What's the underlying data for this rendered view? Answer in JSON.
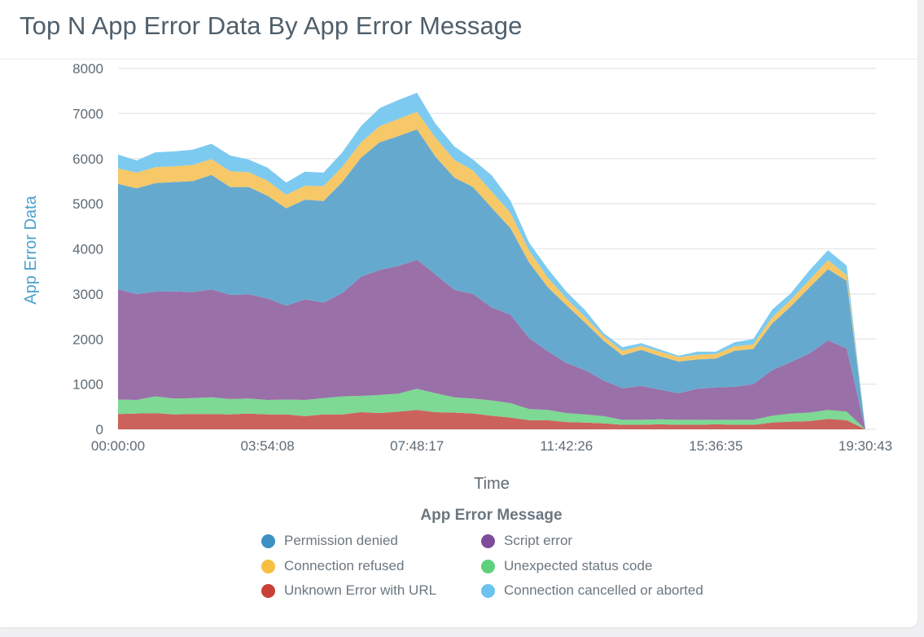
{
  "card": {
    "title": "Top N App Error Data By App Error Message"
  },
  "legend": {
    "title": "App Error Message",
    "items": [
      {
        "label": "Permission denied",
        "color": "#3d8fc4",
        "icon": "circle-marker"
      },
      {
        "label": "Script error",
        "color": "#7d4c9a",
        "icon": "circle-marker"
      },
      {
        "label": "Connection refused",
        "color": "#f5bf42",
        "icon": "circle-marker"
      },
      {
        "label": "Unexpected status code",
        "color": "#5fd07c",
        "icon": "circle-marker"
      },
      {
        "label": "Unknown Error with URL",
        "color": "#c94038",
        "icon": "circle-marker"
      },
      {
        "label": "Connection cancelled or aborted",
        "color": "#6cc3ef",
        "icon": "circle-marker"
      }
    ]
  },
  "axes": {
    "y_label": "App Error Data",
    "x_label": "Time",
    "y_ticks": [
      "0",
      "1000",
      "2000",
      "3000",
      "4000",
      "5000",
      "6000",
      "7000",
      "8000"
    ],
    "x_ticks": [
      "00:00:00",
      "03:54:08",
      "07:48:17",
      "11:42:26",
      "15:36:35",
      "19:30:43"
    ]
  },
  "chart_data": {
    "type": "area",
    "stacked": true,
    "title": "Top N App Error Data By App Error Message",
    "xlabel": "Time",
    "ylabel": "App Error Data",
    "ylim": [
      0,
      8000
    ],
    "grid": true,
    "legend_position": "bottom",
    "legend_title": "App Error Message",
    "x_tick_labels": [
      "00:00:00",
      "03:54:08",
      "07:48:17",
      "11:42:26",
      "15:36:35",
      "19:30:43"
    ],
    "point_count": 41,
    "stack_order_bottom_to_top": [
      "Unknown Error with URL",
      "Unexpected status code",
      "Script error",
      "Permission denied",
      "Connection refused",
      "Connection cancelled or aborted"
    ],
    "series": [
      {
        "name": "Unknown Error with URL",
        "color": "#cc625c",
        "values": [
          340,
          350,
          360,
          330,
          340,
          340,
          330,
          350,
          330,
          330,
          290,
          330,
          330,
          380,
          360,
          390,
          430,
          380,
          370,
          350,
          300,
          260,
          200,
          200,
          160,
          150,
          130,
          100,
          100,
          110,
          100,
          100,
          110,
          100,
          100,
          150,
          170,
          180,
          230,
          200,
          0
        ]
      },
      {
        "name": "Unexpected status code",
        "color": "#7dd994",
        "values": [
          320,
          300,
          370,
          350,
          350,
          370,
          340,
          330,
          320,
          330,
          360,
          360,
          400,
          360,
          400,
          400,
          470,
          420,
          340,
          330,
          340,
          320,
          250,
          230,
          200,
          180,
          160,
          110,
          110,
          110,
          110,
          110,
          100,
          110,
          110,
          150,
          180,
          190,
          200,
          190,
          0
        ]
      },
      {
        "name": "Script error",
        "color": "#9a70a8",
        "values": [
          2440,
          2350,
          2320,
          2380,
          2350,
          2390,
          2310,
          2310,
          2250,
          2080,
          2230,
          2120,
          2290,
          2640,
          2770,
          2830,
          2860,
          2630,
          2380,
          2320,
          2060,
          1960,
          1570,
          1300,
          1110,
          980,
          790,
          700,
          750,
          660,
          590,
          690,
          720,
          730,
          790,
          1010,
          1140,
          1310,
          1540,
          1400,
          0
        ]
      },
      {
        "name": "Permission denied",
        "color": "#66a9cf",
        "values": [
          2340,
          2340,
          2410,
          2420,
          2460,
          2540,
          2390,
          2380,
          2280,
          2160,
          2210,
          2250,
          2460,
          2640,
          2830,
          2880,
          2890,
          2610,
          2490,
          2370,
          2210,
          1920,
          1680,
          1420,
          1280,
          1050,
          880,
          730,
          800,
          740,
          700,
          650,
          640,
          800,
          780,
          1030,
          1230,
          1460,
          1580,
          1500,
          0
        ]
      },
      {
        "name": "Connection refused",
        "color": "#f6c868",
        "values": [
          340,
          350,
          350,
          350,
          360,
          350,
          350,
          330,
          330,
          300,
          310,
          330,
          340,
          340,
          360,
          380,
          390,
          420,
          390,
          370,
          360,
          340,
          260,
          210,
          150,
          130,
          100,
          100,
          90,
          100,
          100,
          100,
          100,
          100,
          100,
          140,
          150,
          170,
          200,
          130,
          0
        ]
      },
      {
        "name": "Connection cancelled or aborted",
        "color": "#7dcaf0",
        "values": [
          310,
          270,
          330,
          330,
          340,
          340,
          350,
          280,
          290,
          270,
          310,
          300,
          320,
          360,
          400,
          420,
          420,
          310,
          300,
          240,
          360,
          270,
          180,
          200,
          150,
          150,
          70,
          80,
          60,
          50,
          30,
          70,
          50,
          90,
          120,
          170,
          140,
          210,
          220,
          210,
          0
        ]
      }
    ],
    "totals_approx": [
      6090,
      5960,
      6140,
      6160,
      6200,
      6330,
      6070,
      5980,
      5800,
      5470,
      5710,
      5690,
      6140,
      6720,
      7120,
      7300,
      7460,
      6770,
      6270,
      5980,
      5630,
      5070,
      4140,
      3560,
      3050,
      2640,
      2130,
      1820,
      1910,
      1770,
      1630,
      1720,
      1720,
      1930,
      2000,
      2650,
      3010,
      3520,
      3970,
      3630,
      0
    ]
  }
}
